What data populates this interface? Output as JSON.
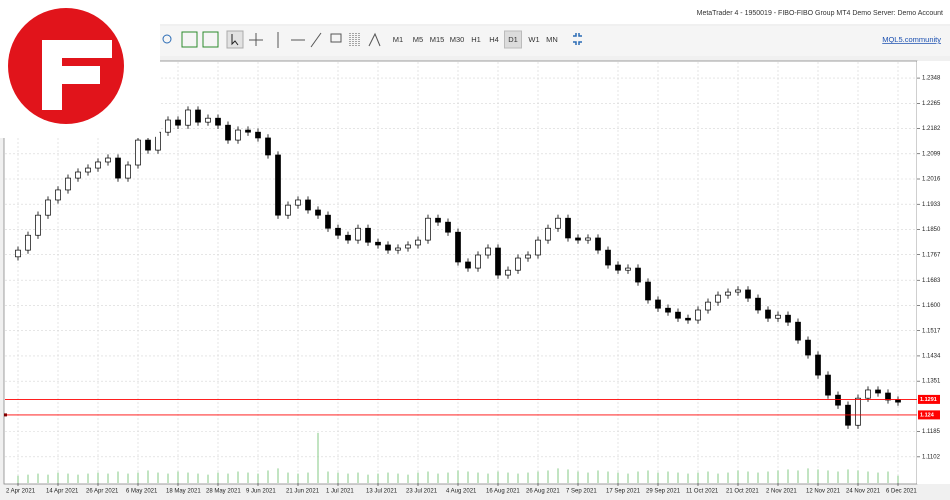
{
  "window": {
    "title": "MetaTrader 4 - 1950019 - FIBO-FIBO Group MT4 Demo Server: Demo Account",
    "timeframes": [
      "M1",
      "M5",
      "M15",
      "M30",
      "H1",
      "H4",
      "D1",
      "W1",
      "MN"
    ],
    "active_timeframe": 6,
    "link": "MQL5.community"
  },
  "chart_data": {
    "type": "candlestick",
    "categories": [
      "2 Apr 2021",
      null,
      null,
      null,
      "14 Apr 2021",
      null,
      null,
      null,
      "26 Apr 2021",
      null,
      null,
      null,
      "6 May 2021",
      null,
      null,
      null,
      "18 May 2021",
      null,
      null,
      null,
      "28 May 2021",
      null,
      null,
      null,
      "9 Jun 2021",
      null,
      null,
      null,
      "21 Jun 2021",
      null,
      null,
      null,
      "1 Jul 2021",
      null,
      null,
      null,
      "13 Jul 2021",
      null,
      null,
      null,
      "23 Jul 2021",
      null,
      null,
      null,
      "4 Aug 2021",
      null,
      null,
      null,
      "16 Aug 2021",
      null,
      null,
      null,
      "26 Aug 2021",
      null,
      null,
      null,
      "7 Sep 2021",
      null,
      null,
      null,
      "17 Sep 2021",
      null,
      null,
      null,
      "29 Sep 2021",
      null,
      null,
      null,
      "11 Oct 2021",
      null,
      null,
      null,
      "21 Oct 2021",
      null,
      null,
      null,
      "2 Nov 2021",
      null,
      null,
      null,
      "12 Nov 2021",
      null,
      null,
      null,
      "24 Nov 2021",
      null,
      null,
      null,
      "6 Dec 2021"
    ],
    "candles": [
      [
        1.176,
        1.1794,
        1.1748,
        1.1782
      ],
      [
        1.1782,
        1.1843,
        1.177,
        1.1831
      ],
      [
        1.1831,
        1.1909,
        1.1819,
        1.1897
      ],
      [
        1.1897,
        1.1959,
        1.1885,
        1.1947
      ],
      [
        1.1947,
        1.1992,
        1.1935,
        1.198
      ],
      [
        1.198,
        1.2031,
        1.1968,
        1.2019
      ],
      [
        1.2019,
        1.2051,
        1.2007,
        1.2039
      ],
      [
        1.2039,
        1.2064,
        1.2027,
        1.2052
      ],
      [
        1.2052,
        1.2084,
        1.204,
        1.2072
      ],
      [
        1.2072,
        1.2097,
        1.206,
        1.2085
      ],
      [
        1.2085,
        1.2097,
        1.2007,
        1.2019
      ],
      [
        1.2019,
        1.2074,
        1.2007,
        1.2062
      ],
      [
        1.2062,
        1.2156,
        1.205,
        1.2144
      ],
      [
        1.2144,
        1.2156,
        1.2099,
        1.2111
      ],
      [
        1.2111,
        1.2182,
        1.2099,
        1.217
      ],
      [
        1.217,
        1.2222,
        1.2158,
        1.221
      ],
      [
        1.221,
        1.2222,
        1.2181,
        1.2193
      ],
      [
        1.2193,
        1.2255,
        1.2181,
        1.2243
      ],
      [
        1.2243,
        1.2255,
        1.2191,
        1.2203
      ],
      [
        1.2203,
        1.2228,
        1.2191,
        1.2216
      ],
      [
        1.2216,
        1.2228,
        1.2181,
        1.2193
      ],
      [
        1.2193,
        1.2205,
        1.2132,
        1.2144
      ],
      [
        1.2144,
        1.2189,
        1.2132,
        1.2177
      ],
      [
        1.2177,
        1.2189,
        1.2158,
        1.217
      ],
      [
        1.217,
        1.2182,
        1.2139,
        1.2151
      ],
      [
        1.2151,
        1.2163,
        1.2083,
        1.2095
      ],
      [
        1.2095,
        1.2107,
        1.1885,
        1.1897
      ],
      [
        1.1897,
        1.1942,
        1.1885,
        1.193
      ],
      [
        1.193,
        1.1959,
        1.1918,
        1.1947
      ],
      [
        1.1947,
        1.1959,
        1.1902,
        1.1914
      ],
      [
        1.1914,
        1.1926,
        1.1885,
        1.1897
      ],
      [
        1.1897,
        1.1909,
        1.1842,
        1.1854
      ],
      [
        1.1854,
        1.1866,
        1.1819,
        1.1831
      ],
      [
        1.1831,
        1.1843,
        1.1803,
        1.1815
      ],
      [
        1.1815,
        1.1866,
        1.1803,
        1.1854
      ],
      [
        1.1854,
        1.1866,
        1.1796,
        1.1808
      ],
      [
        1.1808,
        1.182,
        1.1787,
        1.1799
      ],
      [
        1.1799,
        1.1811,
        1.177,
        1.1782
      ],
      [
        1.1782,
        1.1801,
        1.177,
        1.1789
      ],
      [
        1.1789,
        1.1811,
        1.1777,
        1.1799
      ],
      [
        1.1799,
        1.1827,
        1.1787,
        1.1815
      ],
      [
        1.1815,
        1.1899,
        1.1803,
        1.1887
      ],
      [
        1.1887,
        1.1899,
        1.1862,
        1.1874
      ],
      [
        1.1874,
        1.1886,
        1.1829,
        1.1841
      ],
      [
        1.1841,
        1.1853,
        1.1731,
        1.1743
      ],
      [
        1.1743,
        1.1755,
        1.1711,
        1.1723
      ],
      [
        1.1723,
        1.1778,
        1.1711,
        1.1766
      ],
      [
        1.1766,
        1.1801,
        1.1754,
        1.1789
      ],
      [
        1.1789,
        1.1801,
        1.1688,
        1.17
      ],
      [
        1.17,
        1.1728,
        1.1688,
        1.1716
      ],
      [
        1.1716,
        1.1768,
        1.1704,
        1.1756
      ],
      [
        1.1756,
        1.1778,
        1.1744,
        1.1766
      ],
      [
        1.1766,
        1.1827,
        1.1754,
        1.1815
      ],
      [
        1.1815,
        1.1866,
        1.1803,
        1.1854
      ],
      [
        1.1854,
        1.1899,
        1.1842,
        1.1887
      ],
      [
        1.1887,
        1.1899,
        1.181,
        1.1822
      ],
      [
        1.1822,
        1.1834,
        1.1803,
        1.1815
      ],
      [
        1.1815,
        1.1834,
        1.1803,
        1.1822
      ],
      [
        1.1822,
        1.1834,
        1.177,
        1.1782
      ],
      [
        1.1782,
        1.1794,
        1.1721,
        1.1733
      ],
      [
        1.1733,
        1.1745,
        1.1704,
        1.1716
      ],
      [
        1.1716,
        1.1735,
        1.1704,
        1.1723
      ],
      [
        1.1723,
        1.1735,
        1.1665,
        1.1677
      ],
      [
        1.1677,
        1.1689,
        1.1606,
        1.1618
      ],
      [
        1.1618,
        1.163,
        1.1579,
        1.1591
      ],
      [
        1.1591,
        1.1603,
        1.1566,
        1.1578
      ],
      [
        1.1578,
        1.159,
        1.1546,
        1.1558
      ],
      [
        1.1558,
        1.157,
        1.154,
        1.1552
      ],
      [
        1.1552,
        1.1597,
        1.154,
        1.1585
      ],
      [
        1.1585,
        1.1623,
        1.1573,
        1.1611
      ],
      [
        1.1611,
        1.1646,
        1.1599,
        1.1634
      ],
      [
        1.1634,
        1.1656,
        1.1622,
        1.1644
      ],
      [
        1.1644,
        1.1663,
        1.1632,
        1.1651
      ],
      [
        1.1651,
        1.1663,
        1.1612,
        1.1624
      ],
      [
        1.1624,
        1.1636,
        1.1573,
        1.1585
      ],
      [
        1.1585,
        1.1597,
        1.1546,
        1.1558
      ],
      [
        1.1558,
        1.158,
        1.1546,
        1.1568
      ],
      [
        1.1568,
        1.158,
        1.1533,
        1.1545
      ],
      [
        1.1545,
        1.1557,
        1.1474,
        1.1486
      ],
      [
        1.1486,
        1.1498,
        1.1425,
        1.1437
      ],
      [
        1.1437,
        1.1449,
        1.1359,
        1.1371
      ],
      [
        1.1371,
        1.1383,
        1.1293,
        1.1305
      ],
      [
        1.1305,
        1.1317,
        1.126,
        1.1272
      ],
      [
        1.1272,
        1.1284,
        1.1194,
        1.1206
      ],
      [
        1.1206,
        1.1307,
        1.1194,
        1.1295
      ],
      [
        1.1295,
        1.1334,
        1.1283,
        1.1322
      ],
      [
        1.1322,
        1.1334,
        1.13,
        1.1312
      ],
      [
        1.1312,
        1.1324,
        1.1277,
        1.1289
      ],
      [
        1.1289,
        1.1301,
        1.127,
        1.1282
      ]
    ],
    "up_color": "#ffffff",
    "down_color": "#000000",
    "volumes": [
      7,
      8,
      9,
      8,
      10,
      9,
      8,
      9,
      10,
      9,
      11,
      9,
      10,
      12,
      10,
      9,
      11,
      10,
      9,
      8,
      10,
      9,
      11,
      10,
      9,
      12,
      14,
      10,
      9,
      10,
      48,
      11,
      10,
      9,
      10,
      8,
      9,
      10,
      9,
      8,
      10,
      11,
      9,
      10,
      12,
      11,
      10,
      9,
      11,
      10,
      9,
      10,
      11,
      12,
      14,
      13,
      11,
      10,
      12,
      11,
      10,
      9,
      11,
      12,
      10,
      11,
      10,
      9,
      10,
      11,
      9,
      10,
      12,
      11,
      10,
      11,
      12,
      13,
      12,
      14,
      13,
      12,
      11,
      13,
      12,
      11,
      10,
      11,
      7
    ],
    "volume_color": "#9ad39a",
    "y2lim": [
      0,
      400
    ],
    "hlines": [
      1.1291,
      1.124
    ],
    "hline_color": "#ff0000",
    "ylim": [
      1.1016,
      1.2391
    ],
    "yticks": [
      1.2348,
      1.2265,
      1.2182,
      1.2099,
      1.2016,
      1.1933,
      {
        "value": 1.185,
        "label": "1.1850"
      },
      1.1767,
      1.1683,
      {
        "value": 1.16,
        "label": "1.1600"
      },
      1.1517,
      1.1434,
      1.1351,
      1.1185,
      1.1102
    ],
    "grid": true
  }
}
